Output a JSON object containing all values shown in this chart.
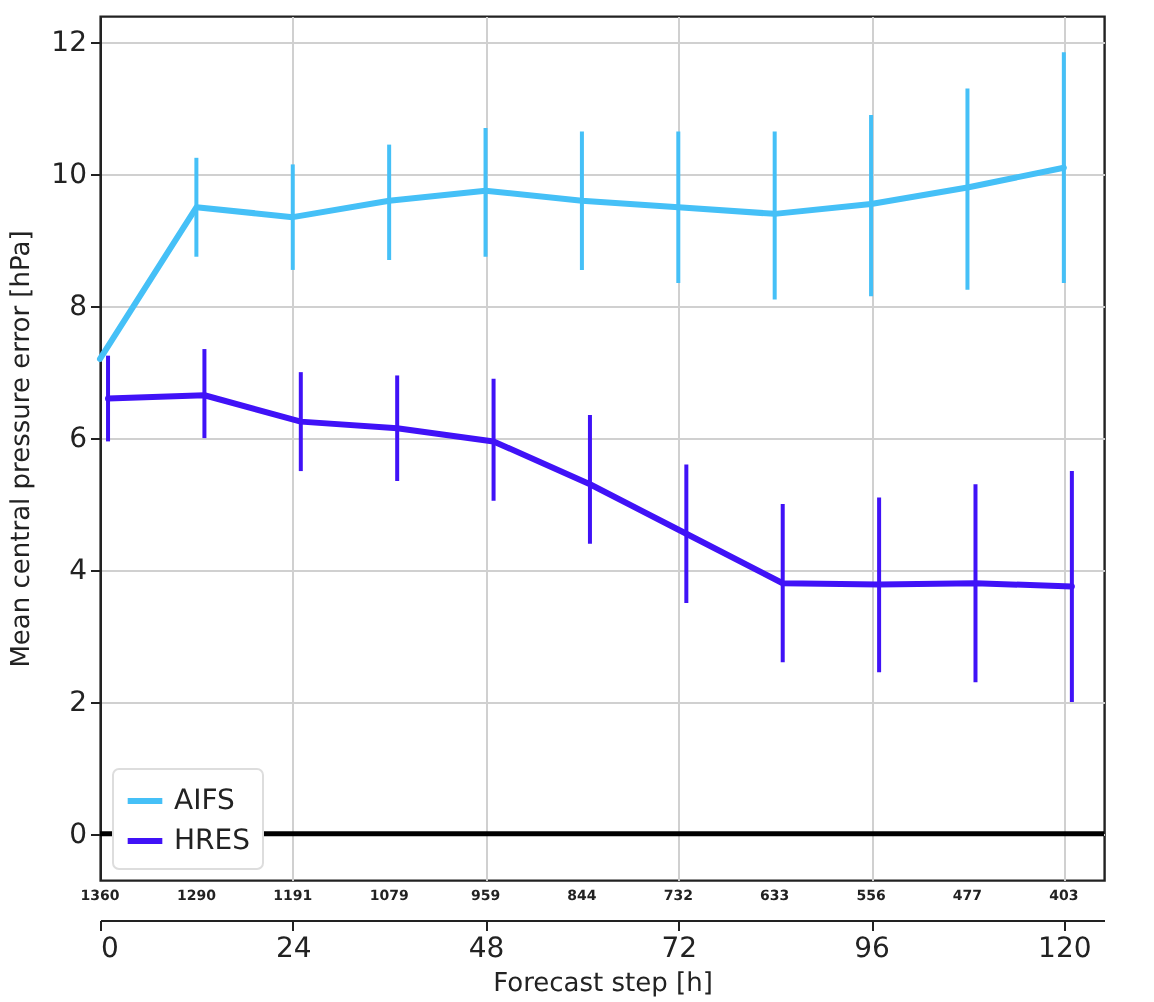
{
  "chart_data": {
    "type": "line",
    "xlabel": "Forecast step [h]",
    "ylabel": "Mean central pressure error [hPa]",
    "xlim": [
      0,
      125
    ],
    "xticks": [
      0,
      24,
      48,
      72,
      96,
      120
    ],
    "ylim": [
      -0.7,
      12.4
    ],
    "yticks": [
      0,
      2,
      4,
      6,
      8,
      10,
      12
    ],
    "series": [
      {
        "name": "AIFS",
        "color": "#45c0f7",
        "x": [
          0,
          12,
          24,
          36,
          48,
          60,
          72,
          84,
          96,
          108,
          120
        ],
        "values": [
          7.2,
          9.5,
          9.35,
          9.6,
          9.75,
          9.6,
          9.5,
          9.4,
          9.55,
          9.8,
          10.1
        ],
        "errors": [
          null,
          [
            8.75,
            10.25
          ],
          [
            8.55,
            10.15
          ],
          [
            8.7,
            10.45
          ],
          [
            8.75,
            10.7
          ],
          [
            8.55,
            10.65
          ],
          [
            8.35,
            10.65
          ],
          [
            8.1,
            10.65
          ],
          [
            8.15,
            10.9
          ],
          [
            8.25,
            11.3
          ],
          [
            8.35,
            11.85
          ]
        ]
      },
      {
        "name": "HRES",
        "color": "#4012f7",
        "x": [
          1,
          13,
          25,
          37,
          49,
          61,
          73,
          85,
          97,
          109,
          121
        ],
        "values": [
          6.6,
          6.65,
          6.25,
          6.15,
          5.95,
          5.3,
          4.55,
          3.8,
          3.78,
          3.8,
          3.75
        ],
        "errors": [
          [
            5.95,
            7.25
          ],
          [
            6.0,
            7.35
          ],
          [
            5.5,
            7.0
          ],
          [
            5.35,
            6.95
          ],
          [
            5.05,
            6.9
          ],
          [
            4.4,
            6.35
          ],
          [
            3.5,
            5.6
          ],
          [
            2.6,
            5.0
          ],
          [
            2.45,
            5.1
          ],
          [
            2.3,
            5.3
          ],
          [
            2.0,
            5.5
          ]
        ]
      }
    ],
    "annotations": [
      "1360",
      "1290",
      "1191",
      "1079",
      "959",
      "844",
      "732",
      "633",
      "556",
      "477",
      "403"
    ],
    "ref_lines": [
      {
        "axis": "y",
        "value": 0,
        "color": "#000000"
      }
    ],
    "grid": true,
    "legend": "bottom left",
    "marker": "none",
    "line_style": "solid"
  }
}
